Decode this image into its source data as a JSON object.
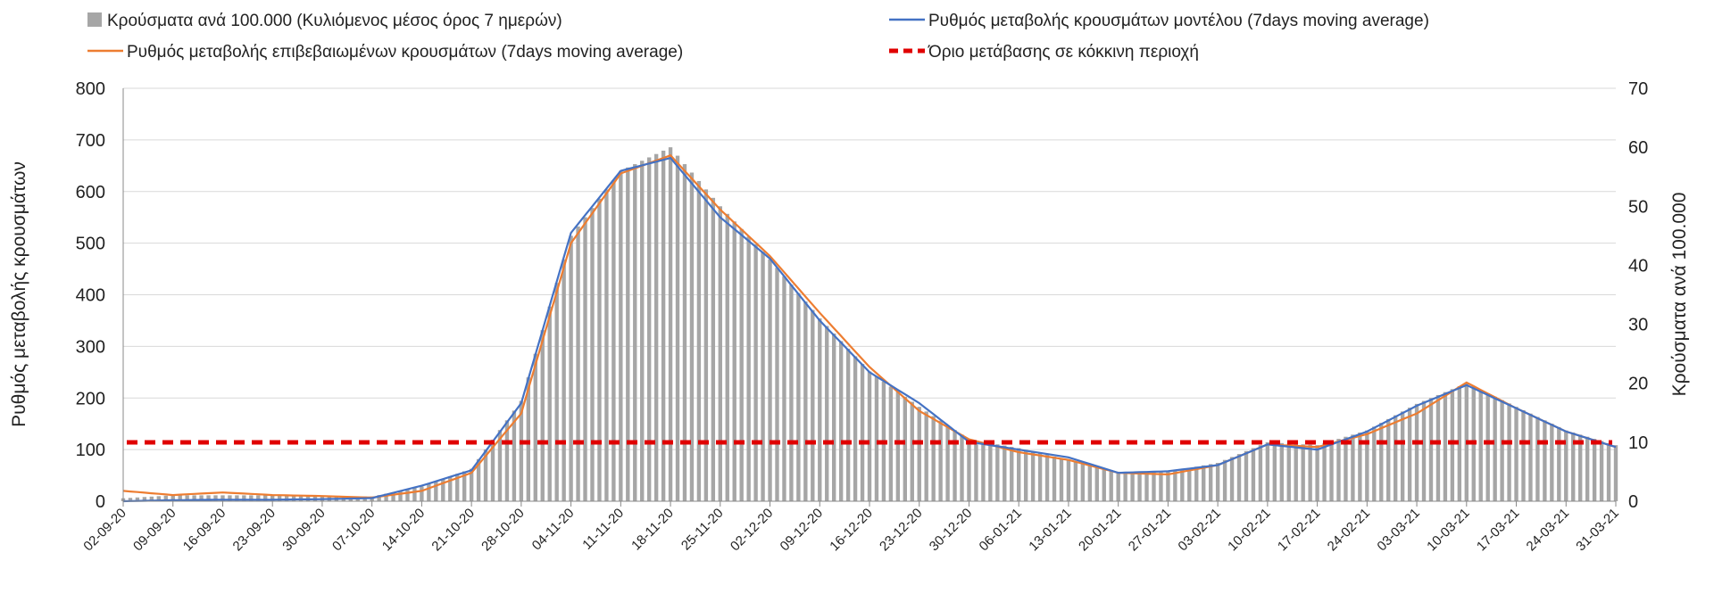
{
  "chart_data": {
    "type": "bar+line",
    "legend": {
      "bars": "Κρούσματα ανά 100.000 (Κυλιόμενος μέσος όρος 7 ημερών)",
      "model": "Ρυθμός μεταβολής κρουσμάτων μοντέλου (7days moving average)",
      "confirmed": "Ρυθμός μεταβολής επιβεβαιωμένων κρουσμάτων (7days moving average)",
      "threshold": "Όριο μετάβασης σε κόκκινη περιοχή",
      "placement": "top"
    },
    "ylabel_left": "Ρυθμός μεταβολής κρουσμάτων",
    "ylabel_right": "Κρούσματα ανά 100.000",
    "ylim_left": [
      0,
      800
    ],
    "ylim_right": [
      0,
      70
    ],
    "yticks_left": [
      "0",
      "100",
      "200",
      "300",
      "400",
      "500",
      "600",
      "700",
      "800"
    ],
    "yticks_right": [
      "0",
      "10",
      "20",
      "30",
      "40",
      "50",
      "60",
      "70"
    ],
    "grid": true,
    "x": [
      "02-09-20",
      "09-09-20",
      "16-09-20",
      "23-09-20",
      "30-09-20",
      "07-10-20",
      "14-10-20",
      "21-10-20",
      "28-10-20",
      "04-11-20",
      "11-11-20",
      "18-11-20",
      "25-11-20",
      "02-12-20",
      "09-12-20",
      "16-12-20",
      "23-12-20",
      "30-12-20",
      "06-01-21",
      "13-01-21",
      "20-01-21",
      "27-01-21",
      "03-02-21",
      "10-02-21",
      "17-02-21",
      "24-02-21",
      "03-03-21",
      "10-03-21",
      "17-03-21",
      "24-03-21",
      "31-03-21"
    ],
    "series": [
      {
        "name": "bars",
        "axis": "right",
        "values": [
          0.5,
          1,
          1,
          1,
          0.8,
          0.8,
          2.5,
          5.5,
          17,
          45,
          56,
          60,
          50,
          41,
          31,
          22,
          16,
          10.5,
          9,
          7,
          5,
          5,
          6.5,
          10,
          9.5,
          12,
          16.5,
          20,
          16,
          12,
          9.5
        ]
      },
      {
        "name": "model",
        "axis": "left",
        "values": [
          0,
          2,
          3,
          3,
          4,
          6,
          30,
          60,
          190,
          520,
          640,
          665,
          550,
          470,
          350,
          250,
          190,
          115,
          100,
          85,
          55,
          58,
          70,
          110,
          100,
          135,
          185,
          225,
          180,
          135,
          105
        ]
      },
      {
        "name": "confirmed",
        "axis": "left",
        "values": [
          20,
          12,
          17,
          12,
          10,
          7,
          20,
          55,
          170,
          500,
          635,
          670,
          565,
          475,
          365,
          260,
          175,
          120,
          95,
          80,
          55,
          52,
          70,
          110,
          105,
          130,
          170,
          230,
          180,
          135,
          105
        ]
      },
      {
        "name": "threshold",
        "axis": "left",
        "value": 114
      }
    ],
    "colors": {
      "bars": "#a6a6a6",
      "model": "#4472c4",
      "confirmed": "#ed7d31",
      "threshold": "#e00000",
      "grid": "#d9d9d9"
    }
  }
}
